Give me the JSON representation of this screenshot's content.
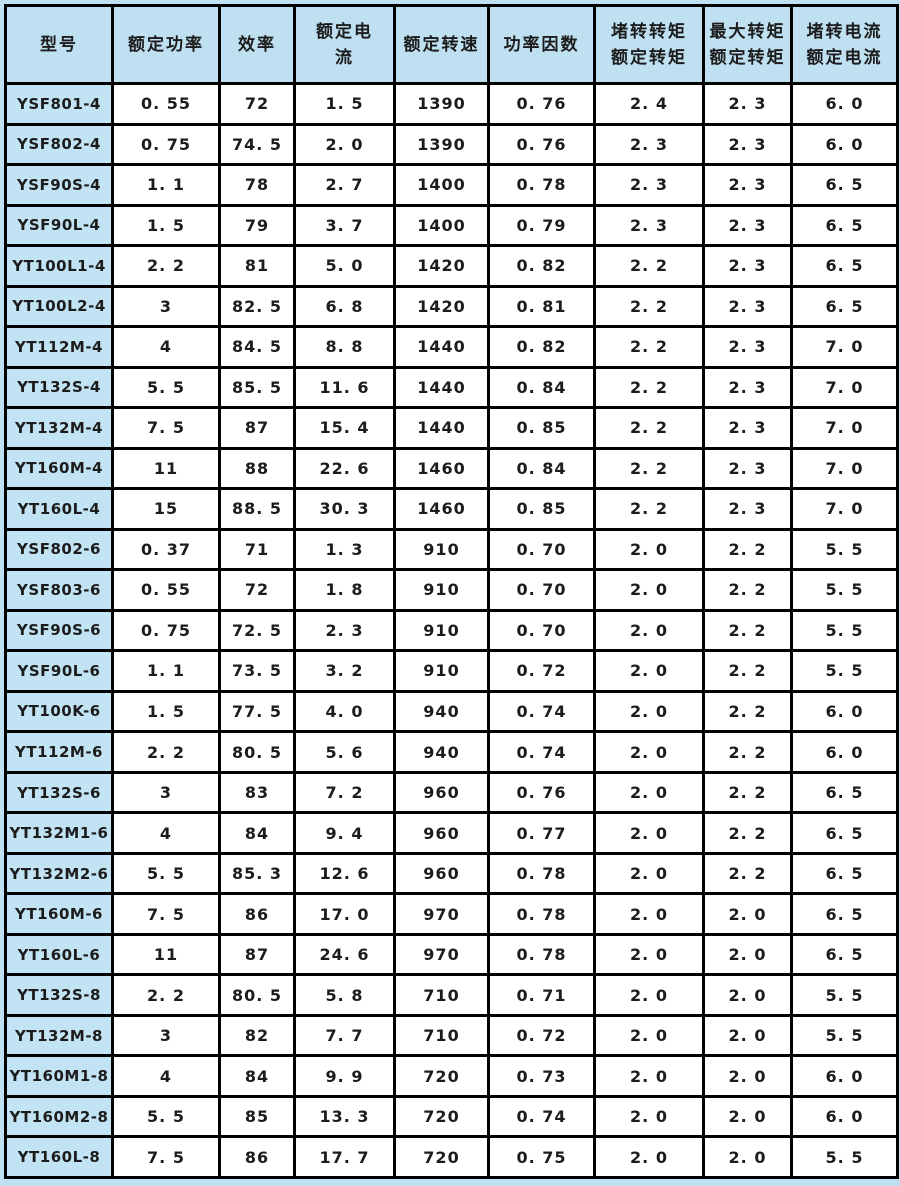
{
  "colors": {
    "page_background": "#bee0f1",
    "header_background": "#bee0f1",
    "model_cell_background": "#c2e3f3",
    "cell_background": "#ffffff",
    "border": "#000000",
    "text": "#1c1c1c"
  },
  "table": {
    "columns": [
      {
        "id": "model",
        "lines": [
          "型号"
        ]
      },
      {
        "id": "rated-power",
        "lines": [
          "额定功率"
        ]
      },
      {
        "id": "efficiency",
        "lines": [
          "效率"
        ]
      },
      {
        "id": "rated-current",
        "lines": [
          "额定电",
          "流"
        ]
      },
      {
        "id": "rated-speed",
        "lines": [
          "额定转速"
        ]
      },
      {
        "id": "power-factor",
        "lines": [
          "功率因数"
        ]
      },
      {
        "id": "locked-rotor-torque-ratio",
        "lines": [
          "堵转转矩",
          "额定转矩"
        ]
      },
      {
        "id": "max-torque-ratio",
        "lines": [
          "最大转矩",
          "额定转矩"
        ]
      },
      {
        "id": "locked-rotor-current-ratio",
        "lines": [
          "堵转电流",
          "额定电流"
        ]
      }
    ],
    "rows": [
      [
        "YSF801-4",
        "0. 55",
        "72",
        "1. 5",
        "1390",
        "0. 76",
        "2. 4",
        "2. 3",
        "6. 0"
      ],
      [
        "YSF802-4",
        "0. 75",
        "74. 5",
        "2. 0",
        "1390",
        "0. 76",
        "2. 3",
        "2. 3",
        "6. 0"
      ],
      [
        "YSF90S-4",
        "1. 1",
        "78",
        "2. 7",
        "1400",
        "0. 78",
        "2. 3",
        "2. 3",
        "6. 5"
      ],
      [
        "YSF90L-4",
        "1. 5",
        "79",
        "3. 7",
        "1400",
        "0. 79",
        "2. 3",
        "2. 3",
        "6. 5"
      ],
      [
        "YT100L1-4",
        "2. 2",
        "81",
        "5. 0",
        "1420",
        "0. 82",
        "2. 2",
        "2. 3",
        "6. 5"
      ],
      [
        "YT100L2-4",
        "3",
        "82. 5",
        "6. 8",
        "1420",
        "0. 81",
        "2. 2",
        "2. 3",
        "6. 5"
      ],
      [
        "YT112M-4",
        "4",
        "84. 5",
        "8. 8",
        "1440",
        "0. 82",
        "2. 2",
        "2. 3",
        "7. 0"
      ],
      [
        "YT132S-4",
        "5. 5",
        "85. 5",
        "11. 6",
        "1440",
        "0. 84",
        "2. 2",
        "2. 3",
        "7. 0"
      ],
      [
        "YT132M-4",
        "7. 5",
        "87",
        "15. 4",
        "1440",
        "0. 85",
        "2. 2",
        "2. 3",
        "7. 0"
      ],
      [
        "YT160M-4",
        "11",
        "88",
        "22. 6",
        "1460",
        "0. 84",
        "2. 2",
        "2. 3",
        "7. 0"
      ],
      [
        "YT160L-4",
        "15",
        "88. 5",
        "30. 3",
        "1460",
        "0. 85",
        "2. 2",
        "2. 3",
        "7. 0"
      ],
      [
        "YSF802-6",
        "0. 37",
        "71",
        "1. 3",
        "910",
        "0. 70",
        "2. 0",
        "2. 2",
        "5. 5"
      ],
      [
        "YSF803-6",
        "0. 55",
        "72",
        "1. 8",
        "910",
        "0. 70",
        "2. 0",
        "2. 2",
        "5. 5"
      ],
      [
        "YSF90S-6",
        "0. 75",
        "72. 5",
        "2. 3",
        "910",
        "0. 70",
        "2. 0",
        "2. 2",
        "5. 5"
      ],
      [
        "YSF90L-6",
        "1. 1",
        "73. 5",
        "3. 2",
        "910",
        "0. 72",
        "2. 0",
        "2. 2",
        "5. 5"
      ],
      [
        "YT100K-6",
        "1. 5",
        "77. 5",
        "4. 0",
        "940",
        "0. 74",
        "2. 0",
        "2. 2",
        "6. 0"
      ],
      [
        "YT112M-6",
        "2. 2",
        "80. 5",
        "5. 6",
        "940",
        "0. 74",
        "2. 0",
        "2. 2",
        "6. 0"
      ],
      [
        "YT132S-6",
        "3",
        "83",
        "7. 2",
        "960",
        "0. 76",
        "2. 0",
        "2. 2",
        "6. 5"
      ],
      [
        "YT132M1-6",
        "4",
        "84",
        "9. 4",
        "960",
        "0. 77",
        "2. 0",
        "2. 2",
        "6. 5"
      ],
      [
        "YT132M2-6",
        "5. 5",
        "85. 3",
        "12. 6",
        "960",
        "0. 78",
        "2. 0",
        "2. 2",
        "6. 5"
      ],
      [
        "YT160M-6",
        "7. 5",
        "86",
        "17. 0",
        "970",
        "0. 78",
        "2. 0",
        "2. 0",
        "6. 5"
      ],
      [
        "YT160L-6",
        "11",
        "87",
        "24. 6",
        "970",
        "0. 78",
        "2. 0",
        "2. 0",
        "6. 5"
      ],
      [
        "YT132S-8",
        "2. 2",
        "80. 5",
        "5. 8",
        "710",
        "0. 71",
        "2. 0",
        "2. 0",
        "5. 5"
      ],
      [
        "YT132M-8",
        "3",
        "82",
        "7. 7",
        "710",
        "0. 72",
        "2. 0",
        "2. 0",
        "5. 5"
      ],
      [
        "YT160M1-8",
        "4",
        "84",
        "9. 9",
        "720",
        "0. 73",
        "2. 0",
        "2. 0",
        "6. 0"
      ],
      [
        "YT160M2-8",
        "5. 5",
        "85",
        "13. 3",
        "720",
        "0. 74",
        "2. 0",
        "2. 0",
        "6. 0"
      ],
      [
        "YT160L-8",
        "7. 5",
        "86",
        "17. 7",
        "720",
        "0. 75",
        "2. 0",
        "2. 0",
        "5. 5"
      ]
    ]
  }
}
